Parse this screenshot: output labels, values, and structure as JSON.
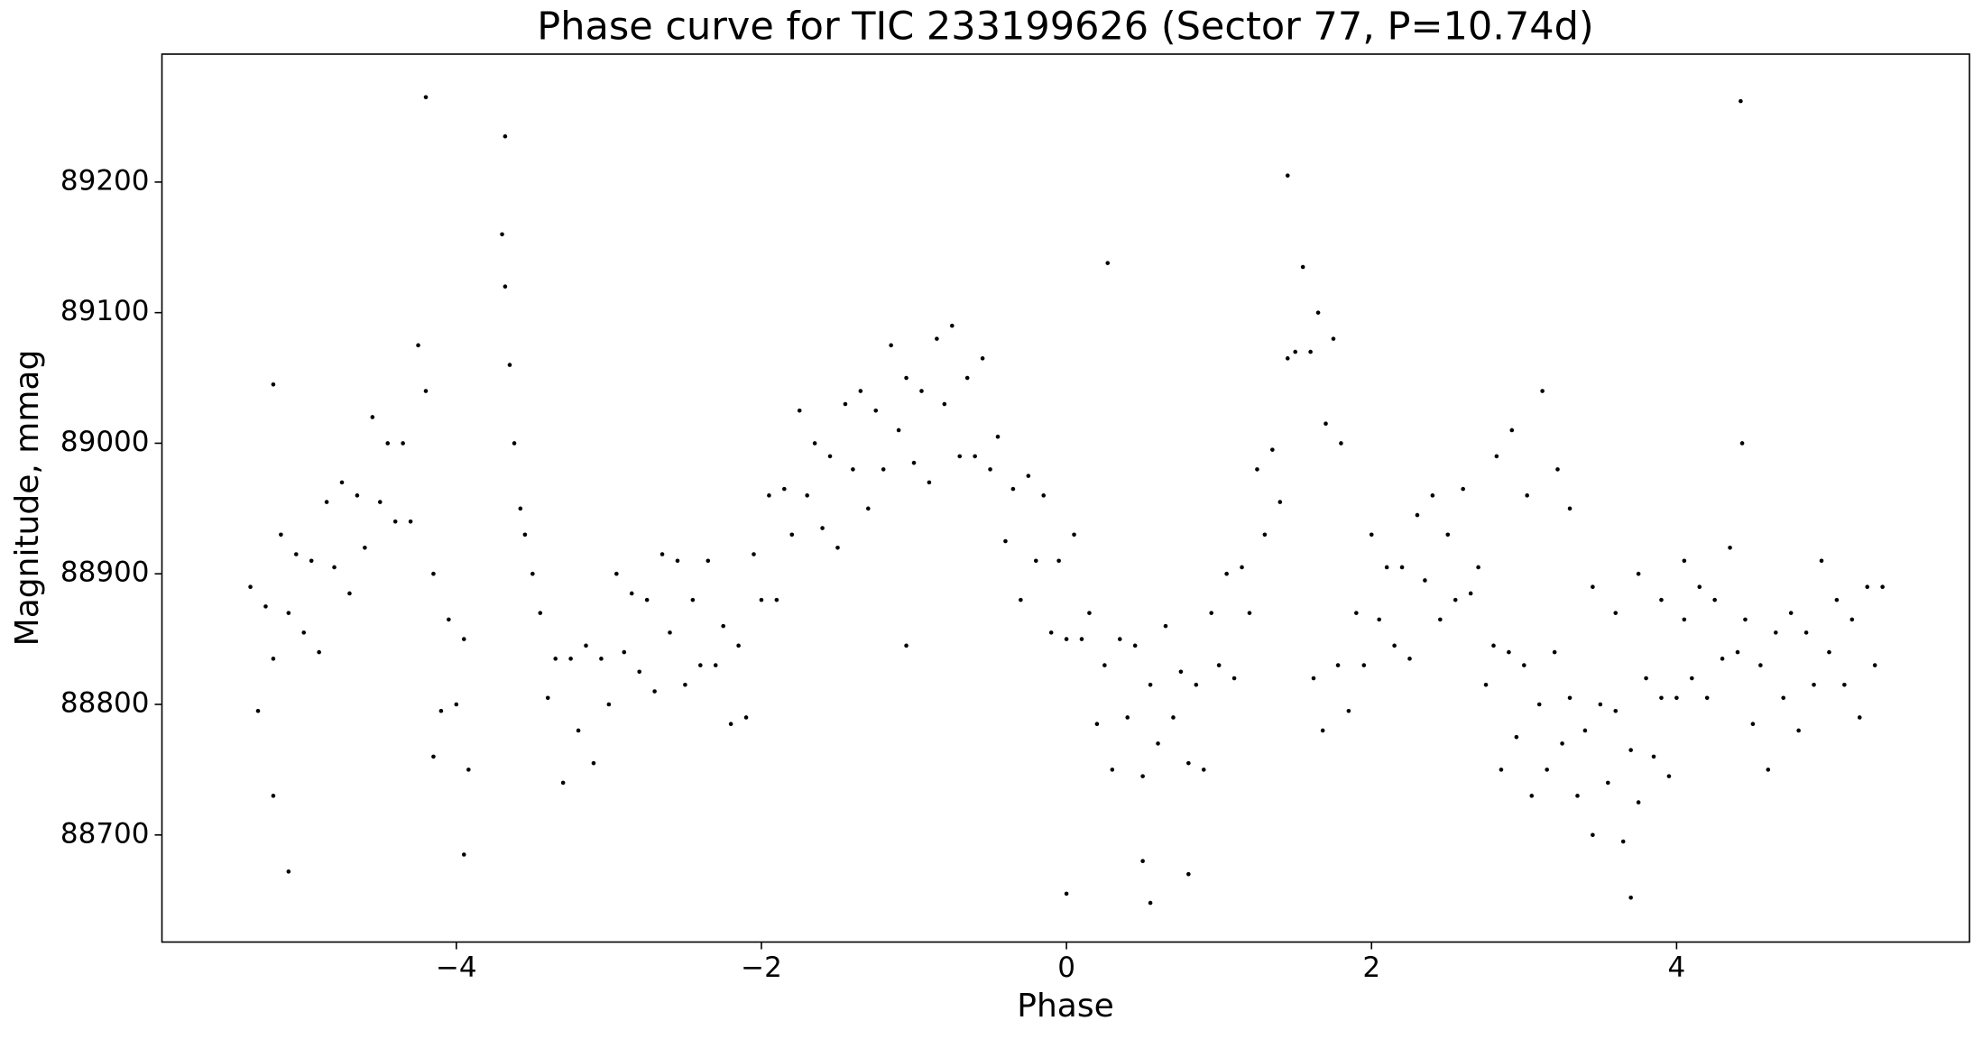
{
  "chart_data": {
    "type": "scatter",
    "title": "Phase curve for TIC 233199626 (Sector 77, P=10.74d)",
    "x_label": "Phase",
    "y_label": "Magnitude, mmag",
    "color": "#000000",
    "xlim": [
      -5.93,
      5.92
    ],
    "ylim": [
      88618,
      89298
    ],
    "xticks": [
      {
        "value": -4,
        "label": "−4"
      },
      {
        "value": -2,
        "label": "−2"
      },
      0,
      2,
      4
    ],
    "yticks": [
      88700,
      88800,
      88900,
      89000,
      89100,
      89200
    ],
    "grid": false,
    "x": [
      -5.35,
      -5.3,
      -5.25,
      -5.2,
      -5.15,
      -5.1,
      -5.05,
      -5.0,
      -4.95,
      -4.9,
      -4.85,
      -4.8,
      -4.75,
      -4.7,
      -4.65,
      -4.6,
      -4.55,
      -4.5,
      -4.45,
      -4.4,
      -4.35,
      -4.3,
      -4.25,
      -4.2,
      -4.15,
      -4.1,
      -4.05,
      -4.0,
      -3.95,
      -3.92,
      -3.7,
      -3.68,
      -3.65,
      -3.62,
      -3.58,
      -3.55,
      -3.5,
      -3.45,
      -3.4,
      -3.35,
      -3.3,
      -3.25,
      -3.2,
      -3.15,
      -3.1,
      -3.05,
      -3.0,
      -2.95,
      -2.9,
      -2.85,
      -2.8,
      -2.75,
      -2.7,
      -2.65,
      -2.6,
      -2.55,
      -2.5,
      -2.45,
      -2.4,
      -2.35,
      -2.3,
      -2.25,
      -2.2,
      -2.15,
      -2.1,
      -2.05,
      -2.0,
      -1.95,
      -1.9,
      -1.85,
      -1.8,
      -1.75,
      -1.7,
      -1.65,
      -1.6,
      -1.55,
      -1.5,
      -1.45,
      -1.4,
      -1.35,
      -1.3,
      -1.25,
      -1.2,
      -1.15,
      -1.1,
      -1.05,
      -1.0,
      -0.95,
      -0.9,
      -0.85,
      -0.8,
      -0.75,
      -0.7,
      -0.65,
      -0.6,
      -0.55,
      -0.5,
      -0.45,
      -0.4,
      -0.35,
      -0.3,
      -0.25,
      -0.2,
      -0.15,
      -0.1,
      -0.05,
      0,
      0.05,
      0.1,
      0.15,
      0.2,
      0.25,
      0.3,
      0.35,
      0.4,
      0.45,
      0.5,
      0.55,
      0.6,
      0.65,
      0.7,
      0.75,
      0.8,
      0.85,
      0.9,
      0.95,
      1.0,
      1.05,
      1.1,
      1.15,
      1.2,
      1.25,
      1.3,
      1.35,
      1.4,
      1.45,
      1.5,
      1.55,
      1.6,
      1.65,
      1.7,
      1.75,
      1.8,
      1.62,
      1.68,
      1.78,
      1.85,
      1.9,
      1.95,
      2.0,
      2.05,
      2.1,
      2.15,
      2.2,
      2.25,
      2.3,
      2.35,
      2.4,
      2.45,
      2.5,
      2.55,
      2.6,
      2.65,
      2.7,
      2.75,
      2.8,
      2.85,
      2.9,
      2.95,
      3.0,
      3.05,
      3.1,
      3.15,
      3.2,
      3.25,
      2.82,
      2.92,
      3.02,
      3.12,
      3.22,
      3.3,
      3.3,
      3.35,
      3.4,
      3.45,
      3.5,
      3.55,
      3.6,
      3.65,
      3.7,
      3.75,
      3.8,
      3.85,
      3.9,
      3.95,
      4.0,
      3.45,
      3.6,
      3.75,
      3.9,
      4.05,
      4.05,
      4.1,
      4.15,
      4.2,
      4.25,
      4.3,
      4.35,
      4.4,
      4.43,
      4.45,
      4.5,
      4.55,
      4.6,
      4.65,
      4.7,
      4.75,
      4.8,
      4.85,
      4.9,
      4.95,
      5.0,
      5.05,
      5.1,
      5.15,
      5.2,
      5.25,
      5.3,
      5.35,
      -4.2,
      -3.68,
      4.42,
      1.45,
      0,
      0.55,
      -5.1,
      -3.95,
      3.7,
      -5.2,
      -1.05,
      0.27,
      -5.2,
      -4.15,
      0.5,
      0.8
    ],
    "values": [
      88890,
      88795,
      88875,
      88835,
      88930,
      88870,
      88915,
      88855,
      88910,
      88840,
      88955,
      88905,
      88970,
      88885,
      88960,
      88920,
      89020,
      88955,
      89000,
      88940,
      89000,
      88940,
      89075,
      89040,
      88900,
      88795,
      88865,
      88800,
      88850,
      88750,
      89160,
      89120,
      89060,
      89000,
      88950,
      88930,
      88900,
      88870,
      88805,
      88835,
      88740,
      88835,
      88780,
      88845,
      88755,
      88835,
      88800,
      88900,
      88840,
      88885,
      88825,
      88880,
      88810,
      88915,
      88855,
      88910,
      88815,
      88880,
      88830,
      88910,
      88830,
      88860,
      88785,
      88845,
      88790,
      88915,
      88880,
      88960,
      88880,
      88965,
      88930,
      89025,
      88960,
      89000,
      88935,
      88990,
      88920,
      89030,
      88980,
      89040,
      88950,
      89025,
      88980,
      89075,
      89010,
      89050,
      88985,
      89040,
      88970,
      89080,
      89030,
      89090,
      88990,
      89050,
      88990,
      89065,
      88980,
      89005,
      88925,
      88965,
      88880,
      88975,
      88910,
      88960,
      88855,
      88910,
      88850,
      88930,
      88850,
      88870,
      88785,
      88830,
      88750,
      88850,
      88790,
      88845,
      88745,
      88815,
      88770,
      88860,
      88790,
      88825,
      88755,
      88815,
      88750,
      88870,
      88830,
      88900,
      88820,
      88905,
      88870,
      88980,
      88930,
      88995,
      88955,
      89065,
      89070,
      89135,
      89070,
      89100,
      89015,
      89080,
      89000,
      88820,
      88780,
      88830,
      88795,
      88870,
      88830,
      88930,
      88865,
      88905,
      88845,
      88905,
      88835,
      88945,
      88895,
      88960,
      88865,
      88930,
      88880,
      88965,
      88885,
      88905,
      88815,
      88845,
      88750,
      88840,
      88775,
      88830,
      88730,
      88800,
      88750,
      88840,
      88770,
      88990,
      89010,
      88960,
      89040,
      88980,
      88950,
      88805,
      88730,
      88780,
      88700,
      88800,
      88740,
      88795,
      88695,
      88765,
      88725,
      88820,
      88760,
      88805,
      88745,
      88805,
      88890,
      88870,
      88900,
      88880,
      88910,
      88865,
      88820,
      88890,
      88805,
      88880,
      88835,
      88920,
      88840,
      89000,
      88865,
      88785,
      88830,
      88750,
      88855,
      88805,
      88870,
      88780,
      88855,
      88815,
      88910,
      88840,
      88880,
      88815,
      88865,
      88790,
      88890,
      88830,
      88890,
      89265,
      89235,
      89262,
      89205,
      88655,
      88648,
      88672,
      88685,
      88652,
      89045,
      88845,
      89138,
      88730,
      88760,
      88680,
      88670
    ]
  }
}
